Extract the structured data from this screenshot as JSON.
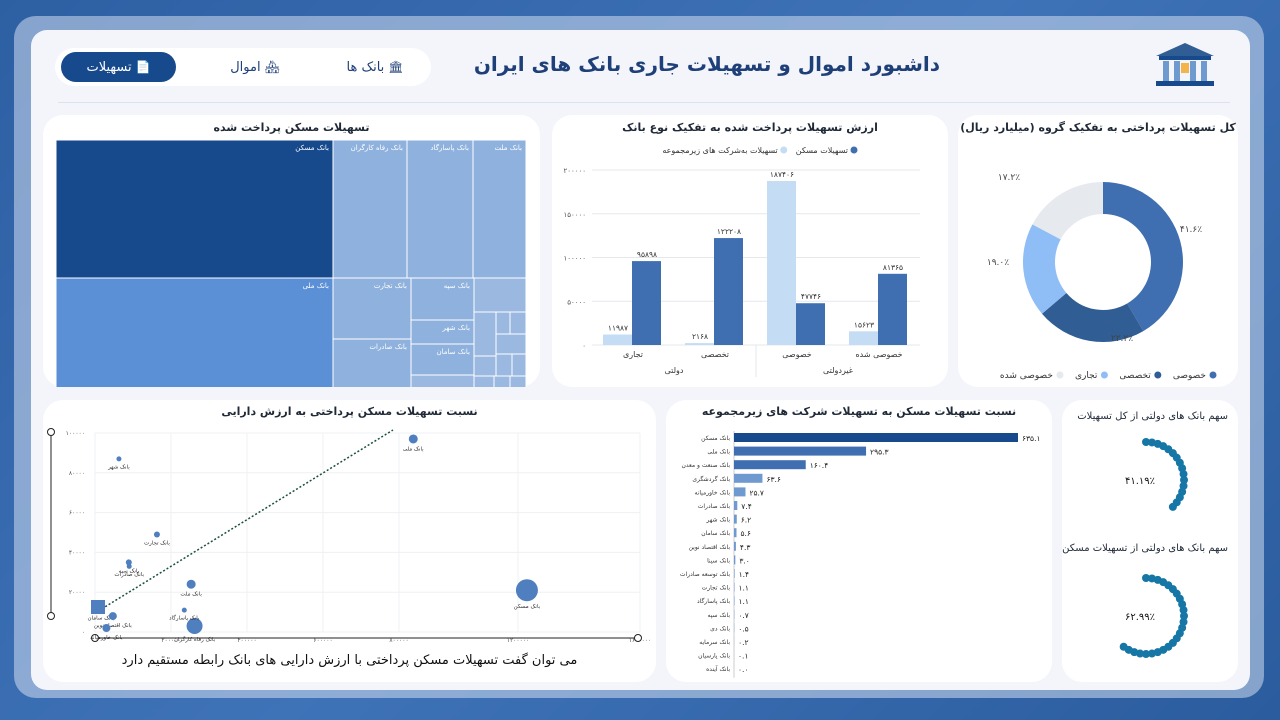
{
  "header": {
    "title": "داشبورد اموال و تسهیلات جاری بانک های ایران",
    "tabs": [
      {
        "label": "بانک ها",
        "icon": "bank-icon"
      },
      {
        "label": "اموال",
        "icon": "building-icon"
      },
      {
        "label": "تسهیلات",
        "icon": "document-icon",
        "active": true
      }
    ]
  },
  "colors": {
    "dark": "#174a8c",
    "mid": "#3f6fb0",
    "light": "#8fbdf5",
    "pale": "#c5dcf5",
    "grey": "#e6e9ee"
  },
  "donut": {
    "title": "کل تسهیلات پرداختی به تفکیک گروه (میلیارد ریال)",
    "chart_data": {
      "type": "pie",
      "labels": [
        "خصوصی",
        "تخصصی",
        "تجاری",
        "خصوصی شده"
      ],
      "values": [
        41.6,
        22.2,
        19.0,
        17.2
      ],
      "value_labels": [
        "۴۱.۶٪",
        "۲۲.۲٪",
        "۱۹.۰٪",
        "۱۷.۲٪"
      ],
      "colors": [
        "#3f6fb0",
        "#2f5d94",
        "#8fbdf5",
        "#e6e9ee"
      ],
      "legend": "bottom"
    }
  },
  "bars": {
    "title": "ارزش تسهیلات پرداخت شده به تفکیک نوع بانک",
    "chart_data": {
      "type": "bar",
      "categories": [
        "تجاری",
        "تخصصی",
        "خصوصی",
        "خصوصی شده"
      ],
      "groups": [
        {
          "label": "دولتی",
          "categories": [
            "تجاری",
            "تخصصی"
          ]
        },
        {
          "label": "غیردولتی",
          "categories": [
            "خصوصی",
            "خصوصی شده"
          ]
        }
      ],
      "series": [
        {
          "name": "تسهیلات به‌شرکت های زیرمجموعه",
          "values": [
            11987,
            2168,
            187406,
            15623
          ],
          "labels": [
            "۱۱۹۸۷",
            "۲۱۶۸",
            "۱۸۷۴۰۶",
            "۱۵۶۲۳"
          ],
          "color": "#c5dcf5"
        },
        {
          "name": "تسهیلات مسکن",
          "values": [
            95898,
            122208,
            47746,
            81365
          ],
          "labels": [
            "۹۵۸۹۸",
            "۱۲۲۲۰۸",
            "۴۷۷۴۶",
            "۸۱۳۶۵"
          ],
          "color": "#3f6fb0"
        }
      ],
      "yticks": [
        0,
        50000,
        100000,
        150000,
        200000
      ],
      "ytick_labels": [
        "۰",
        "۵۰۰۰۰",
        "۱۰۰۰۰۰",
        "۱۵۰۰۰۰",
        "۲۰۰۰۰۰"
      ],
      "ylim": [
        0,
        200000
      ],
      "legend": "top",
      "grid": true
    }
  },
  "treemap": {
    "title": "تسهیلات مسکن پرداخت شده",
    "chart_data": {
      "type": "treemap",
      "labels": [
        "بانک مسکن",
        "بانک ملی",
        "بانک رفاه کارگران",
        "بانک پاسارگاد",
        "بانک ملت",
        "بانک تجارت",
        "بانک سپه",
        "بانک شهر",
        "بانک صادرات",
        "بانک سامان"
      ]
    }
  },
  "scatter": {
    "title": "نسبت تسهیلات مسکن پرداختی به ارزش دارایی",
    "conclusion": "می توان گفت تسهیلات مسکن پرداختی با ارزش دارایی های بانک رابطه مستقیم دارد",
    "chart_data": {
      "type": "scatter",
      "points": [
        {
          "label": "بانک مسکن",
          "x": 1230000,
          "y": 21000,
          "size": 11
        },
        {
          "label": "بانک ملی",
          "x": 848000,
          "y": 97000,
          "size": 4.5
        },
        {
          "label": "بانک شهر",
          "x": 63000,
          "y": 87000,
          "size": 2.5
        },
        {
          "label": "بانک تجارت",
          "x": 163000,
          "y": 49000,
          "size": 3
        },
        {
          "label": "بانک سپه",
          "x": 89000,
          "y": 35000,
          "size": 3
        },
        {
          "label": "بانک صادرات",
          "x": 90000,
          "y": 33000,
          "size": 2.5
        },
        {
          "label": "بانک ملت",
          "x": 253000,
          "y": 24000,
          "size": 4.5
        },
        {
          "label": "بانک رفاه کارگران",
          "x": 262000,
          "y": 3000,
          "size": 8
        },
        {
          "label": "بانک پاسارگاد",
          "x": 235000,
          "y": 11000,
          "size": 2.5
        },
        {
          "label": "بانک سامان",
          "x": 15000,
          "y": 11000,
          "size": 2.5
        },
        {
          "label": "بانک اقتصاد نوین",
          "x": 47000,
          "y": 8000,
          "size": 4
        },
        {
          "label": "بانک خاورمیانه",
          "x": 30000,
          "y": 2000,
          "size": 4
        }
      ],
      "xticks": [
        0,
        200000,
        400000,
        600000,
        800000,
        1200000,
        1600000
      ],
      "xtick_labels": [
        "۰",
        "۲۰۰۰۰۰",
        "۴۰۰۰۰۰",
        "۶۰۰۰۰۰",
        "۸۰۰۰۰۰",
        "۱۲۰۰۰۰۰",
        "۱۶۰۰۰۰۰"
      ],
      "yticks": [
        0,
        20000,
        40000,
        60000,
        80000,
        100000
      ],
      "ytick_labels": [
        "۰",
        "۲۰۰۰۰",
        "۴۰۰۰۰",
        "۶۰۰۰۰",
        "۸۰۰۰۰",
        "۱۰۰۰۰۰"
      ],
      "xlim": [
        0,
        1600000
      ],
      "ylim": [
        0,
        100000
      ],
      "trendline": true
    }
  },
  "hbar": {
    "title": "نسبت تسهیلات مسکن به تسهیلات شرکت های زیرمجموعه",
    "chart_data": {
      "type": "bar",
      "orientation": "horizontal",
      "categories": [
        "بانک مسکن",
        "بانک ملی",
        "بانک صنعت و معدن",
        "بانک گردشگری",
        "بانک خاورمیانه",
        "بانک صادرات",
        "بانک شهر",
        "بانک سامان",
        "بانک اقتصاد نوین",
        "بانک سینا",
        "بانک توسعه صادرات",
        "بانک تجارت",
        "بانک پاسارگاد",
        "بانک سپه",
        "بانک دی",
        "بانک سرمایه",
        "بانک پارسیان",
        "بانک آینده"
      ],
      "values": [
        635.1,
        295.3,
        160.4,
        63.6,
        25.7,
        7.4,
        6.2,
        5.6,
        4.3,
        3.0,
        1.4,
        1.1,
        1.1,
        0.7,
        0.5,
        0.2,
        0.1,
        0.0
      ],
      "value_labels": [
        "۶۳۵.۱",
        "۲۹۵.۳",
        "۱۶۰.۴",
        "۶۳.۶",
        "۲۵.۷",
        "۷.۴",
        "۶.۲",
        "۵.۶",
        "۴.۳",
        "۳.۰",
        "۱.۴",
        "۱.۱",
        "۱.۱",
        "۰.۷",
        "۰.۵",
        "۰.۲",
        "۰.۱",
        "۰.۰"
      ]
    }
  },
  "gauges": [
    {
      "title": "سهم بانک های دولتی از کل تسهیلات",
      "value": 41.19,
      "label": "۴۱.۱۹٪"
    },
    {
      "title": "سهم بانک های دولتی از تسهیلات مسکن",
      "value": 62.99,
      "label": "۶۲.۹۹٪"
    }
  ]
}
